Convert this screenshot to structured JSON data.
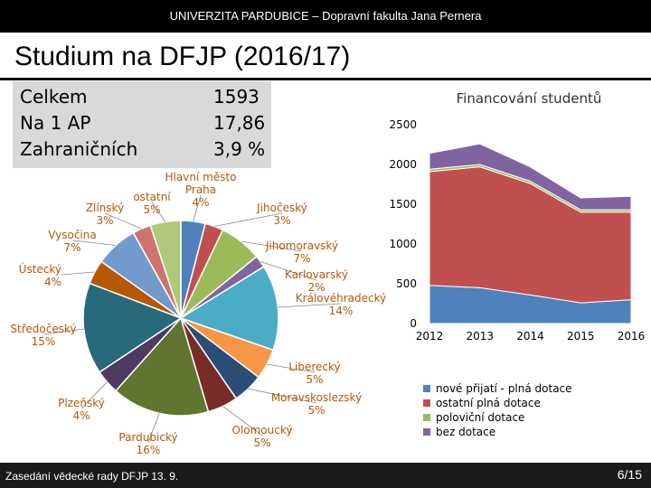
{
  "header": {
    "text": "UNIVERZITA PARDUBICE – Dopravní fakulta Jana Pernera"
  },
  "page_title": "Studium na DFJP (2016/17)",
  "stats": [
    {
      "label": "Celkem",
      "value": "1593"
    },
    {
      "label": "Na 1 AP",
      "value": "17,86"
    },
    {
      "label": "Zahraničních",
      "value": "3,9 %"
    }
  ],
  "footer": {
    "left": "Zasedání vědecké rady DFJP 13. 9.",
    "right": "6/15"
  },
  "chart_data": [
    {
      "type": "pie",
      "slices": [
        {
          "label": "Hlavní město Praha",
          "pct": 4,
          "color": "#4f81bd"
        },
        {
          "label": "Jihočeský",
          "pct": 3,
          "color": "#c0504d"
        },
        {
          "label": "Jihomoravský",
          "pct": 7,
          "color": "#9bbb59"
        },
        {
          "label": "Karlovarský",
          "pct": 2,
          "color": "#8064a2"
        },
        {
          "label": "Královéhradecký",
          "pct": 14,
          "color": "#4bacc6"
        },
        {
          "label": "Liberecký",
          "pct": 5,
          "color": "#f79646"
        },
        {
          "label": "Moravskoslezský",
          "pct": 5,
          "color": "#2c4d75"
        },
        {
          "label": "Olomoucký",
          "pct": 5,
          "color": "#772c2a"
        },
        {
          "label": "Pardubický",
          "pct": 16,
          "color": "#5f7530"
        },
        {
          "label": "Plzeňský",
          "pct": 4,
          "color": "#4d3b62"
        },
        {
          "label": "Středočeský",
          "pct": 15,
          "color": "#276a7c"
        },
        {
          "label": "Ústecký",
          "pct": 4,
          "color": "#b65708"
        },
        {
          "label": "Vysočina",
          "pct": 7,
          "color": "#729aca"
        },
        {
          "label": "Zlínský",
          "pct": 3,
          "color": "#cd7371"
        },
        {
          "label": "ostatní",
          "pct": 5,
          "color": "#afc97a"
        }
      ],
      "labels": [
        {
          "name": "Hlavní město",
          "line2": "Praha",
          "pct": "4%"
        },
        {
          "name": "Jihočeský",
          "line2": "",
          "pct": "3%"
        },
        {
          "name": "Jihomoravský",
          "line2": "",
          "pct": "7%"
        },
        {
          "name": "Karlovarský",
          "line2": "",
          "pct": "2%"
        },
        {
          "name": "Královéhradecký",
          "line2": "",
          "pct": "14%"
        },
        {
          "name": "Liberecký",
          "line2": "",
          "pct": "5%"
        },
        {
          "name": "Moravskoslezský",
          "line2": "",
          "pct": "5%"
        },
        {
          "name": "Olomoucký",
          "line2": "",
          "pct": "5%"
        },
        {
          "name": "Pardubický",
          "line2": "",
          "pct": "16%"
        },
        {
          "name": "Plzeňský",
          "line2": "",
          "pct": "4%"
        },
        {
          "name": "Středočeský",
          "line2": "",
          "pct": "15%"
        },
        {
          "name": "Ústecký",
          "line2": "",
          "pct": "4%"
        },
        {
          "name": "Vysočina",
          "line2": "",
          "pct": "7%"
        },
        {
          "name": "Zlínský",
          "line2": "",
          "pct": "3%"
        },
        {
          "name": "ostatní",
          "line2": "",
          "pct": "5%"
        }
      ]
    },
    {
      "type": "area",
      "title": "Financování studentů",
      "categories": [
        "2012",
        "2013",
        "2014",
        "2015",
        "2016"
      ],
      "stacked": true,
      "ylim": [
        0,
        2500
      ],
      "yticks": [
        0,
        500,
        1000,
        1500,
        2000,
        2500
      ],
      "series": [
        {
          "name": "nové přijatí - plná dotace",
          "values": [
            480,
            450,
            360,
            260,
            300
          ],
          "color": "#4f81bd"
        },
        {
          "name": "ostatní plná dotace",
          "values": [
            1430,
            1520,
            1400,
            1140,
            1100
          ],
          "color": "#c0504d"
        },
        {
          "name": "poloviční dotace",
          "values": [
            30,
            30,
            30,
            30,
            30
          ],
          "color": "#9bbb59"
        },
        {
          "name": "bez dotace",
          "values": [
            200,
            260,
            180,
            150,
            170
          ],
          "color": "#8064a2"
        }
      ],
      "legend_position": "bottom"
    }
  ]
}
